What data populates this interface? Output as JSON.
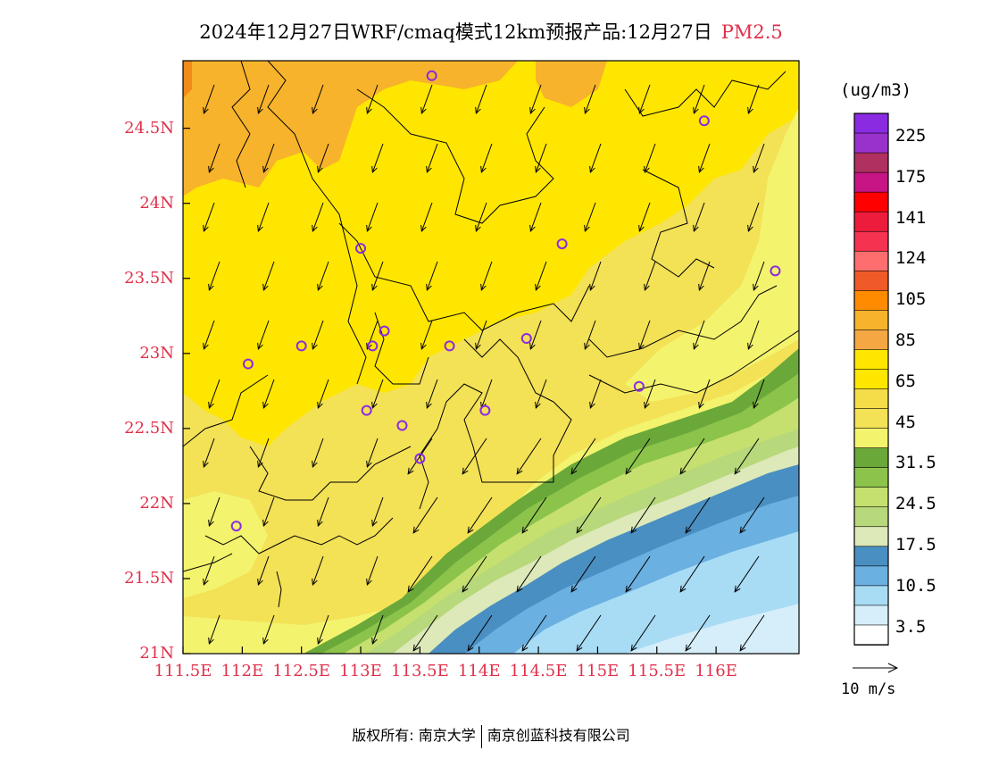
{
  "title": {
    "main": "2024年12月27日WRF/cmaq模式12km预报产品:12月27日",
    "species": "PM2.5"
  },
  "axes": {
    "x_ticks": [
      "111.5E",
      "112E",
      "112.5E",
      "113E",
      "113.5E",
      "114E",
      "114.5E",
      "115E",
      "115.5E",
      "116E"
    ],
    "x_values": [
      111.5,
      112,
      112.5,
      113,
      113.5,
      114,
      114.5,
      115,
      115.5,
      116
    ],
    "y_ticks": [
      "21N",
      "21.5N",
      "22N",
      "22.5N",
      "23N",
      "23.5N",
      "24N",
      "24.5N"
    ],
    "y_values": [
      21,
      21.5,
      22,
      22.5,
      23,
      23.5,
      24,
      24.5
    ],
    "x_range": [
      111.5,
      116.7
    ],
    "y_range": [
      21.0,
      24.95
    ]
  },
  "colorbar": {
    "unit": "(ug/m3)",
    "labels": [
      "225",
      "175",
      "141",
      "124",
      "105",
      "85",
      "65",
      "45",
      "31.5",
      "24.5",
      "17.5",
      "10.5",
      "3.5"
    ],
    "colors_top_to_bottom": [
      "#8a2be2",
      "#9932cc",
      "#b03060",
      "#c71585",
      "#ff0000",
      "#ee1c3c",
      "#f5324f",
      "#ff6e6e",
      "#f05a28",
      "#ff8c00",
      "#f7b32b",
      "#f4a742",
      "#ffe600",
      "#ffe600",
      "#f5dd4a",
      "#f3e156",
      "#f3f36d",
      "#6aa83a",
      "#8cc34a",
      "#c5e06f",
      "#b7d87b",
      "#dde9b8",
      "#4a8fc2",
      "#6ab0e0",
      "#a8dcf5",
      "#d6eefa",
      "#ffffff"
    ]
  },
  "wind_legend": {
    "label": "10 m/s"
  },
  "footer": {
    "left": "版权所有: 南京大学",
    "right": "南京创蓝科技有限公司"
  },
  "colors": {
    "label_red": "#e0304a",
    "station_marker": "#8a2be2"
  },
  "stations": [
    {
      "lon": 113.6,
      "lat": 24.85
    },
    {
      "lon": 115.9,
      "lat": 24.55
    },
    {
      "lon": 113.0,
      "lat": 23.7
    },
    {
      "lon": 114.7,
      "lat": 23.73
    },
    {
      "lon": 116.5,
      "lat": 23.55
    },
    {
      "lon": 112.5,
      "lat": 23.05
    },
    {
      "lon": 112.05,
      "lat": 22.93
    },
    {
      "lon": 113.1,
      "lat": 23.05
    },
    {
      "lon": 113.2,
      "lat": 23.15
    },
    {
      "lon": 113.75,
      "lat": 23.05
    },
    {
      "lon": 114.4,
      "lat": 23.1
    },
    {
      "lon": 115.35,
      "lat": 22.78
    },
    {
      "lon": 113.05,
      "lat": 22.62
    },
    {
      "lon": 113.35,
      "lat": 22.52
    },
    {
      "lon": 114.05,
      "lat": 22.62
    },
    {
      "lon": 113.5,
      "lat": 22.3
    },
    {
      "lon": 111.95,
      "lat": 21.85
    }
  ]
}
